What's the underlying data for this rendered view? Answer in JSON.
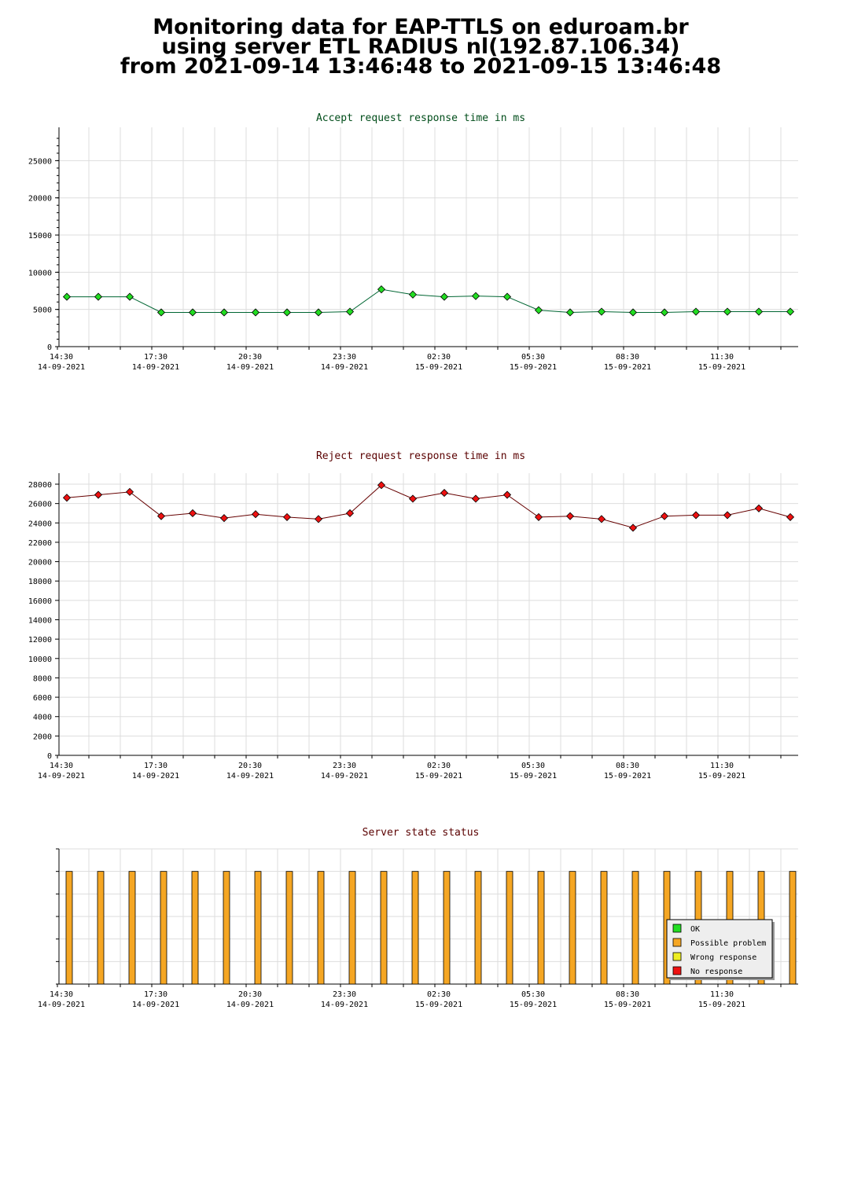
{
  "header": {
    "title_line1": "Monitoring data for EAP-TTLS on eduroam.br",
    "title_line2": "using server ETL RADIUS nl(192.87.106.34)",
    "title_line3": "from 2021-09-14 13:46:48 to 2021-09-15 13:46:48"
  },
  "colors": {
    "accept_title": "#004d1a",
    "reject_title": "#5a0000",
    "status_title": "#5a0000",
    "accept_marker": "#22dd22",
    "accept_line": "#006633",
    "reject_marker": "#ee1111",
    "reject_line": "#660000",
    "status_bar": "#f5a623",
    "grid": "#dddddd"
  },
  "chart_data": [
    {
      "id": "accept",
      "type": "line",
      "title": "Accept request response time in ms",
      "ylim": [
        0,
        28000
      ],
      "yticks": [
        0,
        5000,
        10000,
        15000,
        20000,
        25000
      ],
      "grid": true,
      "x_tick_labels": [
        [
          "14:30",
          "14-09-2021"
        ],
        [
          "17:30",
          "14-09-2021"
        ],
        [
          "20:30",
          "14-09-2021"
        ],
        [
          "23:30",
          "14-09-2021"
        ],
        [
          "02:30",
          "15-09-2021"
        ],
        [
          "05:30",
          "15-09-2021"
        ],
        [
          "08:30",
          "15-09-2021"
        ],
        [
          "11:30",
          "15-09-2021"
        ]
      ],
      "x": [
        "14:48",
        "15:48",
        "16:48",
        "17:48",
        "18:48",
        "19:48",
        "20:48",
        "21:48",
        "22:48",
        "23:48",
        "00:48",
        "01:48",
        "02:48",
        "03:48",
        "04:48",
        "05:48",
        "06:48",
        "07:48",
        "08:48",
        "09:48",
        "10:48",
        "11:48",
        "12:48",
        "13:48"
      ],
      "values": [
        6700,
        6700,
        6700,
        4600,
        4600,
        4600,
        4600,
        4600,
        4600,
        4700,
        7700,
        7000,
        6700,
        6800,
        6700,
        4900,
        4600,
        4700,
        4600,
        4600,
        4700,
        4700,
        4700,
        4700
      ]
    },
    {
      "id": "reject",
      "type": "line",
      "title": "Reject request response time in ms",
      "ylim": [
        0,
        28000
      ],
      "yticks": [
        0,
        2000,
        4000,
        6000,
        8000,
        10000,
        12000,
        14000,
        16000,
        18000,
        20000,
        22000,
        24000,
        26000,
        28000
      ],
      "grid": true,
      "x_tick_labels": [
        [
          "14:30",
          "14-09-2021"
        ],
        [
          "17:30",
          "14-09-2021"
        ],
        [
          "20:30",
          "14-09-2021"
        ],
        [
          "23:30",
          "14-09-2021"
        ],
        [
          "02:30",
          "15-09-2021"
        ],
        [
          "05:30",
          "15-09-2021"
        ],
        [
          "08:30",
          "15-09-2021"
        ],
        [
          "11:30",
          "15-09-2021"
        ]
      ],
      "x": [
        "14:48",
        "15:48",
        "16:48",
        "17:48",
        "18:48",
        "19:48",
        "20:48",
        "21:48",
        "22:48",
        "23:48",
        "00:48",
        "01:48",
        "02:48",
        "03:48",
        "04:48",
        "05:48",
        "06:48",
        "07:48",
        "08:48",
        "09:48",
        "10:48",
        "11:48",
        "12:48",
        "13:48"
      ],
      "values": [
        26600,
        26900,
        27200,
        24700,
        25000,
        24500,
        24900,
        24600,
        24400,
        25000,
        27900,
        26500,
        27100,
        26500,
        26900,
        24600,
        24700,
        24400,
        23500,
        24700,
        24800,
        24800,
        25500,
        24600
      ]
    },
    {
      "id": "status",
      "type": "bar",
      "title": "Server state status",
      "grid": true,
      "x_tick_labels": [
        [
          "14:30",
          "14-09-2021"
        ],
        [
          "17:30",
          "14-09-2021"
        ],
        [
          "20:30",
          "14-09-2021"
        ],
        [
          "23:30",
          "14-09-2021"
        ],
        [
          "02:30",
          "15-09-2021"
        ],
        [
          "05:30",
          "15-09-2021"
        ],
        [
          "08:30",
          "15-09-2021"
        ],
        [
          "11:30",
          "15-09-2021"
        ]
      ],
      "x": [
        "14:48",
        "15:48",
        "16:48",
        "17:48",
        "18:48",
        "19:48",
        "20:48",
        "21:48",
        "22:48",
        "23:48",
        "00:48",
        "01:48",
        "02:48",
        "03:48",
        "04:48",
        "05:48",
        "06:48",
        "07:48",
        "08:48",
        "09:48",
        "10:48",
        "11:48",
        "12:48",
        "13:48"
      ],
      "states": [
        "Possible problem",
        "Possible problem",
        "Possible problem",
        "Possible problem",
        "Possible problem",
        "Possible problem",
        "Possible problem",
        "Possible problem",
        "Possible problem",
        "Possible problem",
        "Possible problem",
        "Possible problem",
        "Possible problem",
        "Possible problem",
        "Possible problem",
        "Possible problem",
        "Possible problem",
        "Possible problem",
        "Possible problem",
        "Possible problem",
        "Possible problem",
        "Possible problem",
        "Possible problem",
        "Possible problem"
      ],
      "legend_placement": "bottom-right",
      "legend": [
        {
          "label": "OK",
          "color": "#22dd22"
        },
        {
          "label": "Possible problem",
          "color": "#f5a623"
        },
        {
          "label": "Wrong response",
          "color": "#eeee22"
        },
        {
          "label": "No response",
          "color": "#ee1111"
        }
      ]
    }
  ]
}
